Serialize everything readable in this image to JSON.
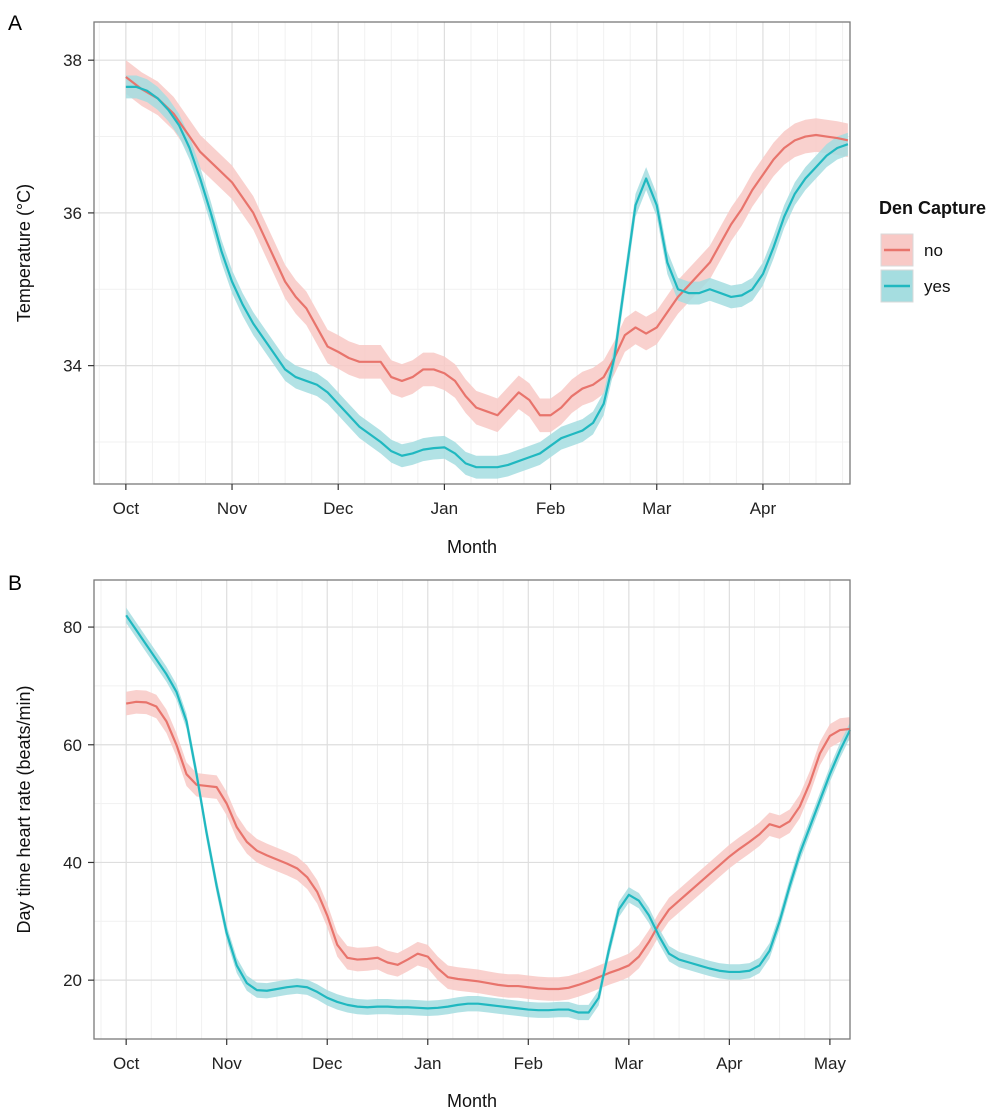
{
  "legend": {
    "title": "Den Capture",
    "items": [
      {
        "label": "no",
        "color": "#E8746C",
        "fill": "#F8C9C6"
      },
      {
        "label": "yes",
        "color": "#20B8C0",
        "fill": "#A5DDE0"
      }
    ]
  },
  "chart_data": [
    {
      "panel": "A",
      "type": "line",
      "xlabel": "Month",
      "ylabel": "Temperature (°C)",
      "x_ticks": [
        "Oct",
        "Nov",
        "Dec",
        "Jan",
        "Feb",
        "Mar",
        "Apr"
      ],
      "x_tick_positions": [
        0,
        1,
        2,
        3,
        4,
        5,
        6
      ],
      "xlim": [
        -0.3,
        6.82
      ],
      "y_ticks": [
        34,
        36,
        38
      ],
      "ylim": [
        32.45,
        38.5
      ],
      "grid": true,
      "legend_position": "right",
      "series": [
        {
          "name": "no",
          "color": "#E8746C",
          "band": 0.22,
          "x": [
            0,
            0.15,
            0.3,
            0.45,
            0.55,
            0.7,
            0.85,
            1.0,
            1.1,
            1.2,
            1.3,
            1.4,
            1.5,
            1.6,
            1.7,
            1.8,
            1.9,
            2.0,
            2.1,
            2.2,
            2.3,
            2.4,
            2.5,
            2.6,
            2.7,
            2.8,
            2.9,
            3.0,
            3.1,
            3.2,
            3.3,
            3.4,
            3.5,
            3.6,
            3.7,
            3.8,
            3.9,
            4.0,
            4.1,
            4.2,
            4.3,
            4.4,
            4.5,
            4.6,
            4.7,
            4.8,
            4.9,
            5.0,
            5.1,
            5.2,
            5.3,
            5.4,
            5.5,
            5.6,
            5.7,
            5.8,
            5.9,
            6.0,
            6.1,
            6.2,
            6.3,
            6.4,
            6.5,
            6.6,
            6.7,
            6.8
          ],
          "y": [
            37.78,
            37.62,
            37.5,
            37.3,
            37.1,
            36.8,
            36.6,
            36.4,
            36.2,
            36.0,
            35.7,
            35.4,
            35.1,
            34.9,
            34.75,
            34.5,
            34.25,
            34.18,
            34.1,
            34.05,
            34.05,
            34.05,
            33.85,
            33.8,
            33.85,
            33.95,
            33.95,
            33.9,
            33.8,
            33.6,
            33.45,
            33.4,
            33.35,
            33.5,
            33.65,
            33.55,
            33.35,
            33.35,
            33.45,
            33.6,
            33.7,
            33.75,
            33.85,
            34.1,
            34.4,
            34.5,
            34.42,
            34.5,
            34.7,
            34.9,
            35.05,
            35.2,
            35.35,
            35.6,
            35.85,
            36.05,
            36.3,
            36.5,
            36.7,
            36.85,
            36.95,
            37.0,
            37.02,
            37.0,
            36.98,
            36.95
          ]
        },
        {
          "name": "yes",
          "color": "#20B8C0",
          "band": 0.15,
          "x": [
            0,
            0.1,
            0.2,
            0.3,
            0.4,
            0.5,
            0.6,
            0.7,
            0.8,
            0.9,
            1.0,
            1.1,
            1.2,
            1.3,
            1.4,
            1.5,
            1.6,
            1.7,
            1.8,
            1.9,
            2.0,
            2.1,
            2.2,
            2.3,
            2.4,
            2.5,
            2.6,
            2.7,
            2.8,
            2.9,
            3.0,
            3.1,
            3.2,
            3.3,
            3.4,
            3.5,
            3.6,
            3.7,
            3.8,
            3.9,
            4.0,
            4.1,
            4.2,
            4.3,
            4.4,
            4.5,
            4.6,
            4.7,
            4.8,
            4.9,
            5.0,
            5.1,
            5.2,
            5.3,
            5.4,
            5.5,
            5.6,
            5.7,
            5.8,
            5.9,
            6.0,
            6.1,
            6.2,
            6.3,
            6.4,
            6.5,
            6.6,
            6.7,
            6.8
          ],
          "y": [
            37.65,
            37.65,
            37.6,
            37.5,
            37.35,
            37.15,
            36.85,
            36.45,
            36.0,
            35.5,
            35.1,
            34.8,
            34.55,
            34.35,
            34.15,
            33.95,
            33.85,
            33.8,
            33.75,
            33.65,
            33.5,
            33.35,
            33.2,
            33.1,
            33.0,
            32.88,
            32.82,
            32.85,
            32.9,
            32.92,
            32.93,
            32.85,
            32.72,
            32.67,
            32.67,
            32.67,
            32.7,
            32.75,
            32.8,
            32.85,
            32.95,
            33.05,
            33.1,
            33.15,
            33.25,
            33.5,
            34.1,
            35.1,
            36.1,
            36.45,
            36.1,
            35.35,
            35.0,
            34.95,
            34.95,
            35.0,
            34.95,
            34.9,
            34.92,
            35.0,
            35.2,
            35.55,
            35.95,
            36.25,
            36.45,
            36.6,
            36.75,
            36.85,
            36.9
          ]
        }
      ]
    },
    {
      "panel": "B",
      "type": "line",
      "xlabel": "Month",
      "ylabel": "Day time heart rate (beats/min)",
      "x_ticks": [
        "Oct",
        "Nov",
        "Dec",
        "Jan",
        "Feb",
        "Mar",
        "Apr",
        "May"
      ],
      "x_tick_positions": [
        0,
        1,
        2,
        3,
        4,
        5,
        6,
        7
      ],
      "xlim": [
        -0.32,
        7.2
      ],
      "y_ticks": [
        20,
        40,
        60,
        80
      ],
      "ylim": [
        10,
        88
      ],
      "grid": true,
      "series": [
        {
          "name": "no",
          "color": "#E8746C",
          "band": 2.0,
          "x": [
            0,
            0.1,
            0.2,
            0.3,
            0.4,
            0.5,
            0.6,
            0.7,
            0.8,
            0.9,
            1.0,
            1.1,
            1.2,
            1.3,
            1.4,
            1.5,
            1.6,
            1.7,
            1.8,
            1.9,
            2.0,
            2.1,
            2.2,
            2.3,
            2.4,
            2.5,
            2.6,
            2.7,
            2.8,
            2.9,
            3.0,
            3.1,
            3.2,
            3.3,
            3.4,
            3.5,
            3.6,
            3.7,
            3.8,
            3.9,
            4.0,
            4.1,
            4.2,
            4.3,
            4.4,
            4.5,
            4.6,
            4.7,
            4.8,
            4.9,
            5.0,
            5.1,
            5.2,
            5.3,
            5.4,
            5.5,
            5.6,
            5.7,
            5.8,
            5.9,
            6.0,
            6.1,
            6.2,
            6.3,
            6.4,
            6.5,
            6.6,
            6.7,
            6.8,
            6.9,
            7.0,
            7.1,
            7.2
          ],
          "y": [
            67.0,
            67.3,
            67.2,
            66.5,
            64.0,
            60.0,
            55.0,
            53.2,
            53.0,
            52.8,
            50.0,
            46.0,
            43.5,
            42.0,
            41.2,
            40.5,
            39.8,
            39.0,
            37.5,
            35.0,
            31.0,
            26.0,
            23.8,
            23.5,
            23.6,
            23.8,
            23.0,
            22.6,
            23.5,
            24.5,
            24.0,
            22.0,
            20.5,
            20.2,
            20.0,
            19.8,
            19.5,
            19.2,
            19.0,
            19.0,
            18.8,
            18.6,
            18.5,
            18.5,
            18.7,
            19.2,
            19.8,
            20.5,
            21.2,
            21.8,
            22.5,
            24.0,
            26.5,
            29.5,
            32.0,
            33.5,
            35.0,
            36.5,
            38.0,
            39.5,
            41.0,
            42.3,
            43.5,
            44.8,
            46.5,
            46.0,
            47.0,
            49.5,
            53.5,
            58.5,
            61.5,
            62.5,
            62.7
          ]
        },
        {
          "name": "yes",
          "color": "#20B8C0",
          "band": 1.3,
          "x": [
            0,
            0.1,
            0.2,
            0.3,
            0.4,
            0.5,
            0.6,
            0.7,
            0.8,
            0.9,
            1.0,
            1.1,
            1.2,
            1.3,
            1.4,
            1.5,
            1.6,
            1.7,
            1.8,
            1.9,
            2.0,
            2.1,
            2.2,
            2.3,
            2.4,
            2.5,
            2.6,
            2.7,
            2.8,
            2.9,
            3.0,
            3.1,
            3.2,
            3.3,
            3.4,
            3.5,
            3.6,
            3.7,
            3.8,
            3.9,
            4.0,
            4.1,
            4.2,
            4.3,
            4.4,
            4.5,
            4.6,
            4.7,
            4.8,
            4.9,
            5.0,
            5.1,
            5.2,
            5.3,
            5.4,
            5.5,
            5.6,
            5.7,
            5.8,
            5.9,
            6.0,
            6.1,
            6.2,
            6.3,
            6.4,
            6.5,
            6.6,
            6.7,
            6.8,
            6.9,
            7.0,
            7.1,
            7.2
          ],
          "y": [
            82.0,
            79.5,
            77.0,
            74.5,
            72.0,
            69.0,
            64.0,
            55.0,
            45.0,
            36.0,
            28.0,
            22.5,
            19.5,
            18.3,
            18.2,
            18.5,
            18.8,
            19.0,
            18.8,
            18.0,
            17.0,
            16.3,
            15.8,
            15.5,
            15.4,
            15.5,
            15.5,
            15.4,
            15.4,
            15.3,
            15.2,
            15.3,
            15.5,
            15.8,
            16.0,
            16.0,
            15.8,
            15.6,
            15.4,
            15.2,
            15.0,
            14.9,
            14.9,
            15.0,
            15.0,
            14.5,
            14.5,
            17.0,
            25.0,
            32.0,
            34.5,
            33.5,
            31.0,
            27.5,
            24.5,
            23.5,
            23.0,
            22.5,
            22.0,
            21.6,
            21.4,
            21.4,
            21.6,
            22.5,
            25.0,
            30.0,
            36.0,
            41.5,
            46.0,
            50.5,
            55.0,
            59.0,
            62.5
          ]
        }
      ]
    }
  ]
}
